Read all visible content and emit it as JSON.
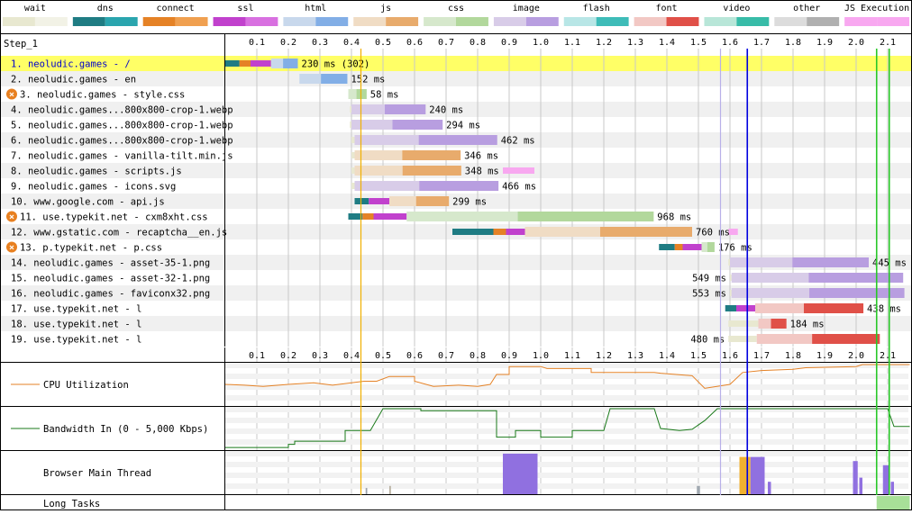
{
  "legend": [
    {
      "label": "wait",
      "color": "#e8e8d0",
      "color2": "#f2f2e6"
    },
    {
      "label": "dns",
      "color": "#1f7c83",
      "color2": "#2aa5ae"
    },
    {
      "label": "connect",
      "color": "#e58226",
      "color2": "#f0a050"
    },
    {
      "label": "ssl",
      "color": "#c141cd",
      "color2": "#d870e0"
    },
    {
      "label": "html",
      "color": "#c8d8ec",
      "color2": "#82aee6"
    },
    {
      "label": "js",
      "color": "#f0dcc4",
      "color2": "#e8ab6c"
    },
    {
      "label": "css",
      "color": "#d6e8cc",
      "color2": "#b2d89c"
    },
    {
      "label": "image",
      "color": "#d8cce8",
      "color2": "#b89ee0"
    },
    {
      "label": "flash",
      "color": "#b8e6e6",
      "color2": "#3ebcb8"
    },
    {
      "label": "font",
      "color": "#f2c8c4",
      "color2": "#e05048"
    },
    {
      "label": "video",
      "color": "#b8e6d8",
      "color2": "#38bca8"
    },
    {
      "label": "other",
      "color": "#dcdcdc",
      "color2": "#b0b0b0"
    },
    {
      "label": "JS Execution",
      "color": "#f8a8f0",
      "color2": "#f8a8f0"
    }
  ],
  "step_label": "Step_1",
  "chart_data": {
    "type": "waterfall",
    "x_ticks": [
      0.1,
      0.2,
      0.3,
      0.4,
      0.5,
      0.6,
      0.7,
      0.8,
      0.9,
      1.0,
      1.1,
      1.2,
      1.3,
      1.4,
      1.5,
      1.6,
      1.7,
      1.8,
      1.9,
      2.0,
      2.1
    ],
    "x_unit": "s",
    "x_range": [
      0,
      2.17
    ],
    "vertical_markers": [
      {
        "t": 0.43,
        "color": "#f0b000"
      },
      {
        "t": 1.57,
        "color": "#b8b0e8"
      },
      {
        "t": 1.655,
        "color": "#0000e0"
      },
      {
        "t": 2.065,
        "color": "#28c828"
      },
      {
        "t": 2.105,
        "color": "#28c828"
      }
    ],
    "requests": [
      {
        "label": "1. neoludic.games - /",
        "type": "html",
        "start": 0.0,
        "end": 0.23,
        "wait_end": 0.0,
        "conn": [
          0.0,
          0.045,
          0.08,
          0.145
        ],
        "value_label": "230 ms (302)",
        "label_pos": "right",
        "highlight": true,
        "blocked": false,
        "link": true
      },
      {
        "label": "2. neoludic.games - en",
        "type": "html",
        "start": 0.235,
        "end": 0.387,
        "wait_end": 0.235,
        "conn": null,
        "value_label": "152 ms",
        "label_pos": "right",
        "blocked": false
      },
      {
        "label": "3. neoludic.games - style.css",
        "type": "css",
        "start": 0.39,
        "end": 0.448,
        "wait_end": 0.39,
        "conn": null,
        "value_label": "58 ms",
        "label_pos": "right",
        "blocked": true
      },
      {
        "label": "4. neoludic.games...800x800-crop-1.webp",
        "type": "image",
        "start": 0.395,
        "end": 0.635,
        "wait_end": 0.4,
        "conn": null,
        "value_label": "240 ms",
        "label_pos": "right",
        "blocked": false
      },
      {
        "label": "5. neoludic.games...800x800-crop-1.webp",
        "type": "image",
        "start": 0.395,
        "end": 0.689,
        "wait_end": 0.4,
        "conn": null,
        "value_label": "294 ms",
        "label_pos": "right",
        "blocked": false
      },
      {
        "label": "6. neoludic.games...800x800-crop-1.webp",
        "type": "image",
        "start": 0.4,
        "end": 0.862,
        "wait_end": 0.41,
        "conn": null,
        "value_label": "462 ms",
        "label_pos": "right",
        "blocked": false
      },
      {
        "label": "7. neoludic.games - vanilla-tilt.min.js",
        "type": "js",
        "start": 0.4,
        "end": 0.746,
        "wait_end": 0.41,
        "conn": null,
        "value_label": "346 ms",
        "label_pos": "right",
        "blocked": false
      },
      {
        "label": "8. neoludic.games - scripts.js",
        "type": "js",
        "start": 0.4,
        "end": 0.748,
        "wait_end": 0.41,
        "conn": null,
        "value_label": "348 ms",
        "label_pos": "right",
        "blocked": false,
        "jsexec": [
          [
            0.88,
            0.98
          ]
        ]
      },
      {
        "label": "9. neoludic.games - icons.svg",
        "type": "image",
        "start": 0.4,
        "end": 0.866,
        "wait_end": 0.41,
        "conn": null,
        "value_label": "466 ms",
        "label_pos": "right",
        "blocked": false
      },
      {
        "label": "10. www.google.com - api.js",
        "type": "js",
        "start": 0.41,
        "end": 0.709,
        "wait_end": 0.41,
        "conn": [
          0.41,
          0.455,
          0.455,
          0.52
        ],
        "value_label": "299 ms",
        "label_pos": "right",
        "blocked": false
      },
      {
        "label": "11. use.typekit.net - cxm8xht.css",
        "type": "css",
        "start": 0.39,
        "end": 1.358,
        "wait_end": 0.39,
        "conn": [
          0.39,
          0.435,
          0.47,
          0.575
        ],
        "value_label": "968 ms",
        "label_pos": "right",
        "blocked": true
      },
      {
        "label": "12. www.gstatic.com - recaptcha__en.js",
        "type": "js",
        "start": 0.72,
        "end": 1.48,
        "wait_end": 0.72,
        "conn": [
          0.72,
          0.85,
          0.89,
          0.95
        ],
        "value_label": "760 ms",
        "label_pos": "right",
        "blocked": false,
        "jsexec": [
          [
            1.595,
            1.625
          ]
        ]
      },
      {
        "label": "13. p.typekit.net - p.css",
        "type": "css",
        "start": 1.375,
        "end": 1.551,
        "wait_end": 1.375,
        "conn": [
          1.375,
          1.425,
          1.45,
          1.51
        ],
        "value_label": "176 ms",
        "label_pos": "right",
        "blocked": true
      },
      {
        "label": "14. neoludic.games - asset-35-1.png",
        "type": "image",
        "start": 1.595,
        "end": 2.04,
        "wait_end": 1.6,
        "conn": null,
        "value_label": "445 ms",
        "label_pos": "right",
        "blocked": false
      },
      {
        "label": "15. neoludic.games - asset-32-1.png",
        "type": "image",
        "start": 1.6,
        "end": 2.149,
        "wait_end": 1.605,
        "conn": null,
        "value_label": "549 ms",
        "label_pos": "left",
        "blocked": false
      },
      {
        "label": "16. neoludic.games - faviconx32.png",
        "type": "image",
        "start": 1.6,
        "end": 2.153,
        "wait_end": 1.605,
        "conn": null,
        "value_label": "553 ms",
        "label_pos": "left",
        "blocked": false
      },
      {
        "label": "17. use.typekit.net - l",
        "type": "font",
        "start": 1.585,
        "end": 2.023,
        "wait_end": 1.585,
        "conn": [
          1.585,
          1.62,
          1.62,
          1.68
        ],
        "value_label": "438 ms",
        "label_pos": "right",
        "blocked": false
      },
      {
        "label": "18. use.typekit.net - l",
        "type": "font",
        "start": 1.595,
        "end": 1.779,
        "wait_end": 1.69,
        "conn": null,
        "value_label": "184 ms",
        "label_pos": "right",
        "blocked": false
      },
      {
        "label": "19. use.typekit.net - l",
        "type": "font",
        "start": 1.595,
        "end": 2.075,
        "wait_end": 1.685,
        "conn": null,
        "value_label": "480 ms",
        "label_pos": "left",
        "blocked": false
      }
    ],
    "cpu_utilization": {
      "label": "CPU Utilization",
      "color": "#e58226",
      "points": [
        [
          0,
          0.5
        ],
        [
          0.06,
          0.52
        ],
        [
          0.12,
          0.55
        ],
        [
          0.2,
          0.5
        ],
        [
          0.28,
          0.46
        ],
        [
          0.34,
          0.52
        ],
        [
          0.38,
          0.48
        ],
        [
          0.44,
          0.42
        ],
        [
          0.48,
          0.42
        ],
        [
          0.52,
          0.3
        ],
        [
          0.6,
          0.3
        ],
        [
          0.6,
          0.42
        ],
        [
          0.66,
          0.55
        ],
        [
          0.74,
          0.52
        ],
        [
          0.8,
          0.55
        ],
        [
          0.84,
          0.5
        ],
        [
          0.86,
          0.25
        ],
        [
          0.9,
          0.25
        ],
        [
          0.9,
          0.05
        ],
        [
          1.0,
          0.05
        ],
        [
          1.02,
          0.1
        ],
        [
          1.16,
          0.1
        ],
        [
          1.16,
          0.2
        ],
        [
          1.36,
          0.2
        ],
        [
          1.38,
          0.22
        ],
        [
          1.48,
          0.28
        ],
        [
          1.52,
          0.6
        ],
        [
          1.6,
          0.5
        ],
        [
          1.64,
          0.2
        ],
        [
          1.7,
          0.15
        ],
        [
          1.8,
          0.12
        ],
        [
          1.84,
          0.08
        ],
        [
          2.0,
          0.05
        ],
        [
          2.02,
          0.0
        ],
        [
          2.1,
          0.0
        ],
        [
          2.17,
          0.0
        ]
      ]
    },
    "bandwidth_in": {
      "label": "Bandwidth In (0 - 5,000 Kbps)",
      "color": "#1a7a1a",
      "points": [
        [
          0,
          0.98
        ],
        [
          0.2,
          0.98
        ],
        [
          0.2,
          0.9
        ],
        [
          0.22,
          0.9
        ],
        [
          0.22,
          0.82
        ],
        [
          0.38,
          0.82
        ],
        [
          0.38,
          0.55
        ],
        [
          0.46,
          0.55
        ],
        [
          0.5,
          0.0
        ],
        [
          0.62,
          0.0
        ],
        [
          0.62,
          0.05
        ],
        [
          0.86,
          0.05
        ],
        [
          0.86,
          0.72
        ],
        [
          0.92,
          0.72
        ],
        [
          0.92,
          0.55
        ],
        [
          1.0,
          0.55
        ],
        [
          1.0,
          0.72
        ],
        [
          1.1,
          0.72
        ],
        [
          1.1,
          0.55
        ],
        [
          1.2,
          0.55
        ],
        [
          1.22,
          0.0
        ],
        [
          1.36,
          0.0
        ],
        [
          1.38,
          0.5
        ],
        [
          1.44,
          0.55
        ],
        [
          1.48,
          0.52
        ],
        [
          1.52,
          0.3
        ],
        [
          1.54,
          0.15
        ],
        [
          1.56,
          0.0
        ],
        [
          2.1,
          0.0
        ],
        [
          2.12,
          0.45
        ],
        [
          2.17,
          0.45
        ]
      ]
    },
    "main_thread": {
      "label": "Browser Main Thread",
      "bursts": [
        {
          "t": 0.445,
          "w": 0.005,
          "h": 0.15,
          "color": "#9aa0a8"
        },
        {
          "t": 0.52,
          "w": 0.005,
          "h": 0.2,
          "color": "#b8b0a0"
        },
        {
          "t": 0.88,
          "w": 0.11,
          "h": 0.98,
          "color": "#9070e0"
        },
        {
          "t": 0.96,
          "w": 0.015,
          "h": 0.6,
          "color": "#9070e0"
        },
        {
          "t": 1.495,
          "w": 0.01,
          "h": 0.2,
          "color": "#a0a8b0"
        },
        {
          "t": 1.63,
          "w": 0.035,
          "h": 0.9,
          "color": "#f0b030"
        },
        {
          "t": 1.665,
          "w": 0.045,
          "h": 0.9,
          "color": "#9070e0"
        },
        {
          "t": 1.72,
          "w": 0.01,
          "h": 0.3,
          "color": "#9070e0"
        },
        {
          "t": 1.99,
          "w": 0.015,
          "h": 0.8,
          "color": "#9070e0"
        },
        {
          "t": 2.01,
          "w": 0.01,
          "h": 0.4,
          "color": "#9070e0"
        },
        {
          "t": 2.085,
          "w": 0.02,
          "h": 0.7,
          "color": "#9070e0"
        },
        {
          "t": 2.11,
          "w": 0.01,
          "h": 0.3,
          "color": "#9070e0"
        }
      ]
    },
    "long_tasks": {
      "label": "Long Tasks",
      "color": "#a8e098",
      "spans": [
        [
          2.065,
          2.17
        ]
      ]
    }
  }
}
